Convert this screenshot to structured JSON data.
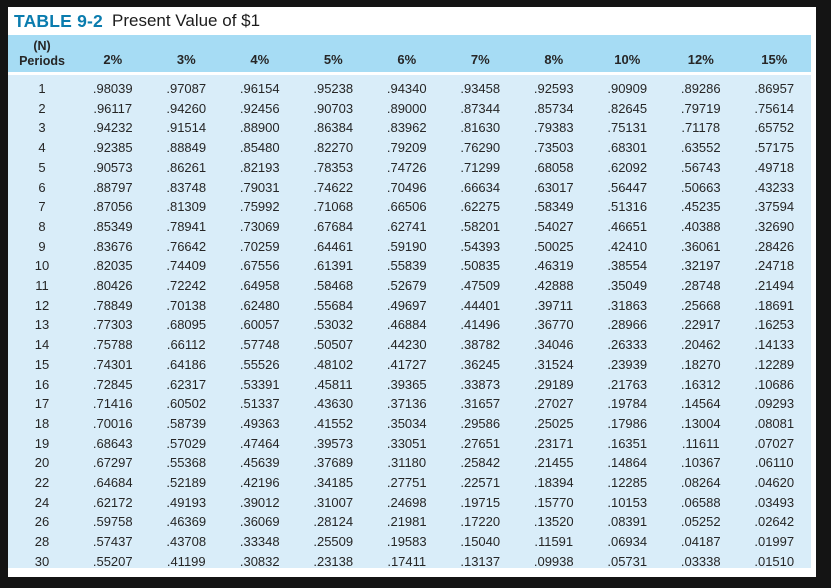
{
  "title": {
    "label": "TABLE 9-2",
    "text": "Present Value of $1"
  },
  "table": {
    "period_header": {
      "line1": "(N)",
      "line2": "Periods"
    },
    "rate_headers": [
      "2%",
      "3%",
      "4%",
      "5%",
      "6%",
      "7%",
      "8%",
      "10%",
      "12%",
      "15%"
    ],
    "rows": [
      {
        "period": "1",
        "values": [
          ".98039",
          ".97087",
          ".96154",
          ".95238",
          ".94340",
          ".93458",
          ".92593",
          ".90909",
          ".89286",
          ".86957"
        ]
      },
      {
        "period": "2",
        "values": [
          ".96117",
          ".94260",
          ".92456",
          ".90703",
          ".89000",
          ".87344",
          ".85734",
          ".82645",
          ".79719",
          ".75614"
        ]
      },
      {
        "period": "3",
        "values": [
          ".94232",
          ".91514",
          ".88900",
          ".86384",
          ".83962",
          ".81630",
          ".79383",
          ".75131",
          ".71178",
          ".65752"
        ]
      },
      {
        "period": "4",
        "values": [
          ".92385",
          ".88849",
          ".85480",
          ".82270",
          ".79209",
          ".76290",
          ".73503",
          ".68301",
          ".63552",
          ".57175"
        ]
      },
      {
        "period": "5",
        "values": [
          ".90573",
          ".86261",
          ".82193",
          ".78353",
          ".74726",
          ".71299",
          ".68058",
          ".62092",
          ".56743",
          ".49718"
        ]
      },
      {
        "period": "6",
        "values": [
          ".88797",
          ".83748",
          ".79031",
          ".74622",
          ".70496",
          ".66634",
          ".63017",
          ".56447",
          ".50663",
          ".43233"
        ]
      },
      {
        "period": "7",
        "values": [
          ".87056",
          ".81309",
          ".75992",
          ".71068",
          ".66506",
          ".62275",
          ".58349",
          ".51316",
          ".45235",
          ".37594"
        ]
      },
      {
        "period": "8",
        "values": [
          ".85349",
          ".78941",
          ".73069",
          ".67684",
          ".62741",
          ".58201",
          ".54027",
          ".46651",
          ".40388",
          ".32690"
        ]
      },
      {
        "period": "9",
        "values": [
          ".83676",
          ".76642",
          ".70259",
          ".64461",
          ".59190",
          ".54393",
          ".50025",
          ".42410",
          ".36061",
          ".28426"
        ]
      },
      {
        "period": "10",
        "values": [
          ".82035",
          ".74409",
          ".67556",
          ".61391",
          ".55839",
          ".50835",
          ".46319",
          ".38554",
          ".32197",
          ".24718"
        ]
      },
      {
        "period": "11",
        "values": [
          ".80426",
          ".72242",
          ".64958",
          ".58468",
          ".52679",
          ".47509",
          ".42888",
          ".35049",
          ".28748",
          ".21494"
        ]
      },
      {
        "period": "12",
        "values": [
          ".78849",
          ".70138",
          ".62480",
          ".55684",
          ".49697",
          ".44401",
          ".39711",
          ".31863",
          ".25668",
          ".18691"
        ]
      },
      {
        "period": "13",
        "values": [
          ".77303",
          ".68095",
          ".60057",
          ".53032",
          ".46884",
          ".41496",
          ".36770",
          ".28966",
          ".22917",
          ".16253"
        ]
      },
      {
        "period": "14",
        "values": [
          ".75788",
          ".66112",
          ".57748",
          ".50507",
          ".44230",
          ".38782",
          ".34046",
          ".26333",
          ".20462",
          ".14133"
        ]
      },
      {
        "period": "15",
        "values": [
          ".74301",
          ".64186",
          ".55526",
          ".48102",
          ".41727",
          ".36245",
          ".31524",
          ".23939",
          ".18270",
          ".12289"
        ]
      },
      {
        "period": "16",
        "values": [
          ".72845",
          ".62317",
          ".53391",
          ".45811",
          ".39365",
          ".33873",
          ".29189",
          ".21763",
          ".16312",
          ".10686"
        ]
      },
      {
        "period": "17",
        "values": [
          ".71416",
          ".60502",
          ".51337",
          ".43630",
          ".37136",
          ".31657",
          ".27027",
          ".19784",
          ".14564",
          ".09293"
        ]
      },
      {
        "period": "18",
        "values": [
          ".70016",
          ".58739",
          ".49363",
          ".41552",
          ".35034",
          ".29586",
          ".25025",
          ".17986",
          ".13004",
          ".08081"
        ]
      },
      {
        "period": "19",
        "values": [
          ".68643",
          ".57029",
          ".47464",
          ".39573",
          ".33051",
          ".27651",
          ".23171",
          ".16351",
          ".11611",
          ".07027"
        ]
      },
      {
        "period": "20",
        "values": [
          ".67297",
          ".55368",
          ".45639",
          ".37689",
          ".31180",
          ".25842",
          ".21455",
          ".14864",
          ".10367",
          ".06110"
        ]
      },
      {
        "period": "22",
        "values": [
          ".64684",
          ".52189",
          ".42196",
          ".34185",
          ".27751",
          ".22571",
          ".18394",
          ".12285",
          ".08264",
          ".04620"
        ]
      },
      {
        "period": "24",
        "values": [
          ".62172",
          ".49193",
          ".39012",
          ".31007",
          ".24698",
          ".19715",
          ".15770",
          ".10153",
          ".06588",
          ".03493"
        ]
      },
      {
        "period": "26",
        "values": [
          ".59758",
          ".46369",
          ".36069",
          ".28124",
          ".21981",
          ".17220",
          ".13520",
          ".08391",
          ".05252",
          ".02642"
        ]
      },
      {
        "period": "28",
        "values": [
          ".57437",
          ".43708",
          ".33348",
          ".25509",
          ".19583",
          ".15040",
          ".11591",
          ".06934",
          ".04187",
          ".01997"
        ]
      },
      {
        "period": "30",
        "values": [
          ".55207",
          ".41199",
          ".30832",
          ".23138",
          ".17411",
          ".13137",
          ".09938",
          ".05731",
          ".03338",
          ".01510"
        ]
      }
    ]
  },
  "colors": {
    "frame_bg": "#141414",
    "header_bg": "#a6dcf4",
    "body_bg": "#d9edf9",
    "title_accent": "#0a7cae"
  }
}
